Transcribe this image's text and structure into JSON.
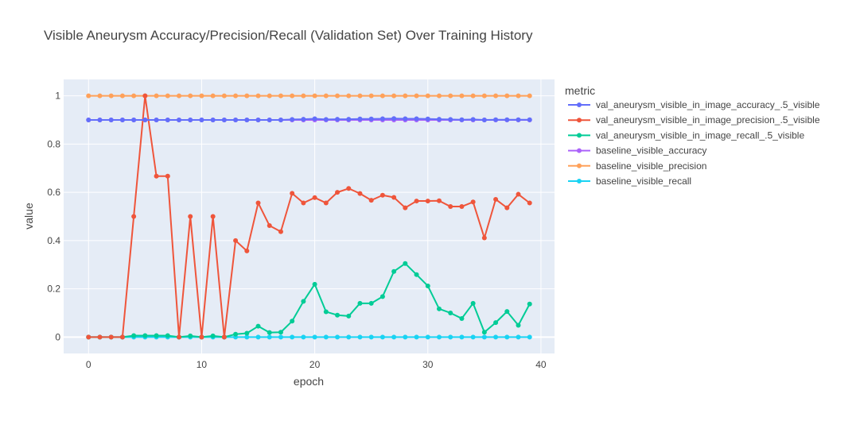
{
  "chart_data": {
    "type": "line",
    "title": "Visible Aneurysm Accuracy/Precision/Recall (Validation Set) Over Training History",
    "xlabel": "epoch",
    "ylabel": "value",
    "xlim": [
      -2.2,
      41.2
    ],
    "ylim": [
      -0.068,
      1.068
    ],
    "xticks": [
      0,
      10,
      20,
      30,
      40
    ],
    "yticks": [
      0,
      0.2,
      0.4,
      0.6,
      0.8,
      1
    ],
    "grid": true,
    "legend_title": "metric",
    "legend_position": "right",
    "x": [
      0,
      1,
      2,
      3,
      4,
      5,
      6,
      7,
      8,
      9,
      10,
      11,
      12,
      13,
      14,
      15,
      16,
      17,
      18,
      19,
      20,
      21,
      22,
      23,
      24,
      25,
      26,
      27,
      28,
      29,
      30,
      31,
      32,
      33,
      34,
      35,
      36,
      37,
      38,
      39
    ],
    "series": [
      {
        "name": "val_aneurysm_visible_in_image_accuracy_.5_visible",
        "color": "#636efa",
        "values": [
          0.9,
          0.9,
          0.9,
          0.9,
          0.9,
          0.9,
          0.9,
          0.9,
          0.9,
          0.9,
          0.9,
          0.9,
          0.9,
          0.9,
          0.9,
          0.9,
          0.9,
          0.9,
          0.902,
          0.903,
          0.905,
          0.902,
          0.903,
          0.903,
          0.904,
          0.904,
          0.905,
          0.906,
          0.905,
          0.905,
          0.904,
          0.903,
          0.902,
          0.901,
          0.902,
          0.9,
          0.901,
          0.901,
          0.901,
          0.901
        ]
      },
      {
        "name": "val_aneurysm_visible_in_image_precision_.5_visible",
        "color": "#EF553B",
        "values": [
          0,
          0,
          0,
          0,
          0.5,
          1,
          0.667,
          0.667,
          0,
          0.5,
          0,
          0.5,
          0,
          0.4,
          0.357,
          0.556,
          0.462,
          0.437,
          0.596,
          0.556,
          0.578,
          0.556,
          0.6,
          0.616,
          0.595,
          0.567,
          0.588,
          0.579,
          0.536,
          0.564,
          0.564,
          0.565,
          0.541,
          0.541,
          0.56,
          0.411,
          0.571,
          0.536,
          0.592,
          0.556
        ]
      },
      {
        "name": "val_aneurysm_visible_in_image_recall_.5_visible",
        "color": "#00cc96",
        "values": [
          0,
          0,
          0,
          0,
          0.006,
          0.006,
          0.006,
          0.006,
          0,
          0.005,
          0,
          0.005,
          0,
          0.012,
          0.016,
          0.045,
          0.019,
          0.02,
          0.066,
          0.148,
          0.219,
          0.105,
          0.091,
          0.087,
          0.14,
          0.14,
          0.168,
          0.272,
          0.305,
          0.259,
          0.212,
          0.117,
          0.1,
          0.077,
          0.14,
          0.02,
          0.06,
          0.106,
          0.049,
          0.137
        ]
      },
      {
        "name": "baseline_visible_accuracy",
        "color": "#ab63fa",
        "values": [
          0.9,
          0.9,
          0.9,
          0.9,
          0.9,
          0.9,
          0.9,
          0.9,
          0.9,
          0.9,
          0.9,
          0.9,
          0.9,
          0.9,
          0.9,
          0.9,
          0.9,
          0.9,
          0.9,
          0.9,
          0.9,
          0.9,
          0.9,
          0.9,
          0.9,
          0.9,
          0.9,
          0.9,
          0.9,
          0.9,
          0.9,
          0.9,
          0.9,
          0.9,
          0.9,
          0.9,
          0.9,
          0.9,
          0.9,
          0.9
        ]
      },
      {
        "name": "baseline_visible_precision",
        "color": "#FFA15A",
        "values": [
          1,
          1,
          1,
          1,
          1,
          1,
          1,
          1,
          1,
          1,
          1,
          1,
          1,
          1,
          1,
          1,
          1,
          1,
          1,
          1,
          1,
          1,
          1,
          1,
          1,
          1,
          1,
          1,
          1,
          1,
          1,
          1,
          1,
          1,
          1,
          1,
          1,
          1,
          1,
          1
        ]
      },
      {
        "name": "baseline_visible_recall",
        "color": "#19d3f3",
        "values": [
          0,
          0,
          0,
          0,
          0,
          0,
          0,
          0,
          0,
          0,
          0,
          0,
          0,
          0,
          0,
          0,
          0,
          0,
          0,
          0,
          0,
          0,
          0,
          0,
          0,
          0,
          0,
          0,
          0,
          0,
          0,
          0,
          0,
          0,
          0,
          0,
          0,
          0,
          0,
          0
        ]
      }
    ]
  }
}
